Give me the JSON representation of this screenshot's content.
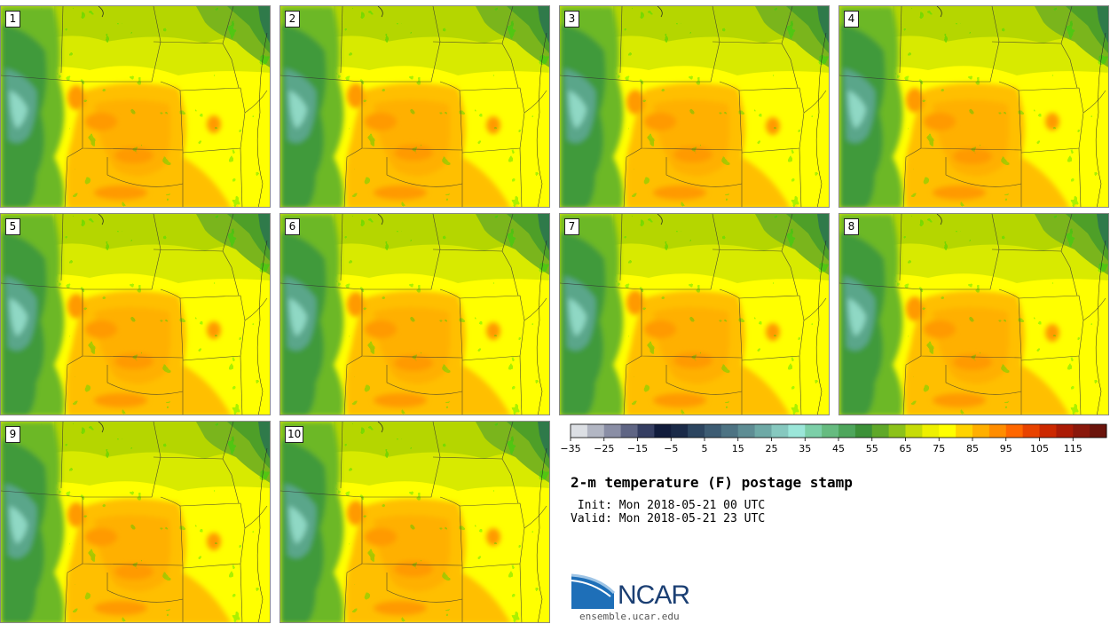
{
  "panels": [
    {
      "label": "1"
    },
    {
      "label": "2"
    },
    {
      "label": "3"
    },
    {
      "label": "4"
    },
    {
      "label": "5"
    },
    {
      "label": "6"
    },
    {
      "label": "7"
    },
    {
      "label": "8"
    },
    {
      "label": "9"
    },
    {
      "label": "10"
    }
  ],
  "colorbar": {
    "colors": [
      "#dcdfe4",
      "#b2b6c3",
      "#8a8ea5",
      "#5f6584",
      "#353e62",
      "#111c3c",
      "#1a2a48",
      "#2c4560",
      "#3d5c73",
      "#4d7383",
      "#5e8d94",
      "#6ea9a6",
      "#86c8bf",
      "#9be6d9",
      "#7ccfa8",
      "#66bb80",
      "#4ea65c",
      "#3c9138",
      "#5fa829",
      "#8cc21a",
      "#c6dc07",
      "#eef000",
      "#ffff00",
      "#ffd300",
      "#ffaf00",
      "#ff8d00",
      "#ff6700",
      "#e84300",
      "#cc2800",
      "#ab1b06",
      "#8a180c",
      "#6b140c"
    ],
    "tick_labels": [
      "−35",
      "−25",
      "−15",
      "−5",
      "5",
      "15",
      "25",
      "35",
      "45",
      "55",
      "65",
      "75",
      "85",
      "95",
      "105",
      "115"
    ]
  },
  "title": "2-m temperature (F) postage stamp",
  "init_text": " Init: Mon 2018-05-21 00 UTC",
  "valid_text": "Valid: Mon 2018-05-21 23 UTC",
  "logo": {
    "text": "NCAR",
    "url": "ensemble.ucar.edu"
  }
}
